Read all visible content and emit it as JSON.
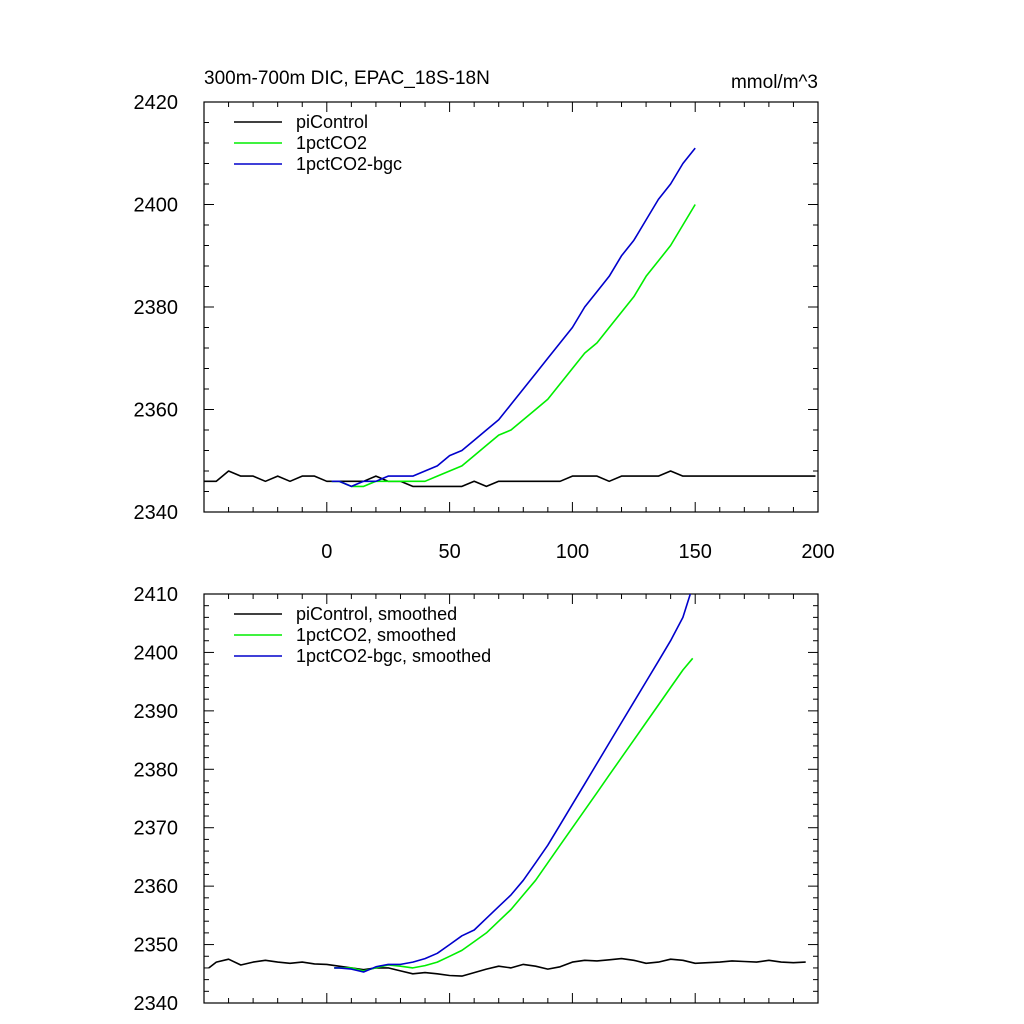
{
  "chart_data": [
    {
      "type": "line",
      "title": "300m-700m DIC, EPAC_18S-18N",
      "units": "mmol/m^3",
      "xlim": [
        -50,
        200
      ],
      "ylim": [
        2340,
        2420
      ],
      "xticks": [
        0,
        50,
        100,
        150,
        200
      ],
      "yticks": [
        2340,
        2360,
        2380,
        2400,
        2420
      ],
      "xtick_labels": [
        "0",
        "50",
        "100",
        "150",
        "200"
      ],
      "ytick_labels": [
        "2340",
        "2360",
        "2380",
        "2400",
        "2420"
      ],
      "legend_position": "top-left",
      "series": [
        {
          "name": "piControl",
          "color": "#000000",
          "x": [
            -50,
            -45,
            -40,
            -35,
            -30,
            -25,
            -20,
            -15,
            -10,
            -5,
            0,
            5,
            10,
            15,
            20,
            25,
            30,
            35,
            40,
            45,
            50,
            55,
            60,
            65,
            70,
            75,
            80,
            85,
            90,
            95,
            100,
            105,
            110,
            115,
            120,
            125,
            130,
            135,
            140,
            145,
            150,
            155,
            160,
            165,
            170,
            175,
            180,
            185,
            190,
            195,
            199
          ],
          "y": [
            2346,
            2346,
            2348,
            2347,
            2347,
            2346,
            2347,
            2346,
            2347,
            2347,
            2346,
            2346,
            2346,
            2346,
            2347,
            2346,
            2346,
            2345,
            2345,
            2345,
            2345,
            2345,
            2346,
            2345,
            2346,
            2346,
            2346,
            2346,
            2346,
            2346,
            2347,
            2347,
            2347,
            2346,
            2347,
            2347,
            2347,
            2347,
            2348,
            2347,
            2347,
            2347,
            2347,
            2347,
            2347,
            2347,
            2347,
            2347,
            2347,
            2347,
            2347
          ]
        },
        {
          "name": "1pctCO2",
          "color": "#00ee00",
          "x": [
            2,
            5,
            10,
            15,
            20,
            25,
            30,
            35,
            40,
            45,
            50,
            55,
            60,
            65,
            70,
            75,
            80,
            85,
            90,
            95,
            100,
            105,
            110,
            115,
            120,
            125,
            130,
            135,
            140,
            145,
            150
          ],
          "y": [
            2346,
            2346,
            2345,
            2345,
            2346,
            2346,
            2346,
            2346,
            2346,
            2347,
            2348,
            2349,
            2351,
            2353,
            2355,
            2356,
            2358,
            2360,
            2362,
            2365,
            2368,
            2371,
            2373,
            2376,
            2379,
            2382,
            2386,
            2389,
            2392,
            2396,
            2400
          ]
        },
        {
          "name": "1pctCO2-bgc",
          "color": "#0000cc",
          "x": [
            2,
            5,
            10,
            15,
            20,
            25,
            30,
            35,
            40,
            45,
            50,
            55,
            60,
            65,
            70,
            75,
            80,
            85,
            90,
            95,
            100,
            105,
            110,
            115,
            120,
            125,
            130,
            135,
            140,
            145,
            150
          ],
          "y": [
            2346,
            2346,
            2345,
            2346,
            2346,
            2347,
            2347,
            2347,
            2348,
            2349,
            2351,
            2352,
            2354,
            2356,
            2358,
            2361,
            2364,
            2367,
            2370,
            2373,
            2376,
            2380,
            2383,
            2386,
            2390,
            2393,
            2397,
            2401,
            2404,
            2408,
            2411
          ]
        }
      ]
    },
    {
      "type": "line",
      "title": "",
      "ylim": [
        2340,
        2410
      ],
      "xlim": [
        -50,
        200
      ],
      "yticks": [
        2340,
        2350,
        2360,
        2370,
        2380,
        2390,
        2400,
        2410
      ],
      "ytick_labels": [
        "2340",
        "2350",
        "2360",
        "2370",
        "2380",
        "2390",
        "2400",
        "2410"
      ],
      "legend_position": "top-left",
      "series": [
        {
          "name": "piControl, smoothed",
          "color": "#000000",
          "x": [
            -48,
            -45,
            -40,
            -35,
            -30,
            -25,
            -20,
            -15,
            -10,
            -5,
            0,
            5,
            10,
            15,
            20,
            25,
            30,
            35,
            40,
            45,
            50,
            55,
            60,
            65,
            70,
            75,
            80,
            85,
            90,
            95,
            100,
            105,
            110,
            115,
            120,
            125,
            130,
            135,
            140,
            145,
            150,
            155,
            160,
            165,
            170,
            175,
            180,
            185,
            190,
            195
          ],
          "y": [
            2346,
            2347,
            2347.5,
            2346.5,
            2347,
            2347.3,
            2347,
            2346.8,
            2347,
            2346.7,
            2346.6,
            2346.3,
            2346,
            2345.7,
            2346,
            2346,
            2345.5,
            2345,
            2345.2,
            2345,
            2344.7,
            2344.6,
            2345.2,
            2345.8,
            2346.3,
            2346,
            2346.6,
            2346.3,
            2345.8,
            2346.2,
            2347,
            2347.3,
            2347.2,
            2347.4,
            2347.6,
            2347.3,
            2346.8,
            2347,
            2347.5,
            2347.3,
            2346.8,
            2346.9,
            2347,
            2347.2,
            2347.1,
            2347,
            2347.3,
            2347,
            2346.9,
            2347
          ]
        },
        {
          "name": "1pctCO2, smoothed",
          "color": "#00ee00",
          "x": [
            3,
            5,
            10,
            15,
            20,
            25,
            30,
            35,
            40,
            45,
            50,
            55,
            60,
            65,
            70,
            75,
            80,
            85,
            90,
            95,
            100,
            105,
            110,
            115,
            120,
            125,
            130,
            135,
            140,
            145,
            149
          ],
          "y": [
            2346,
            2346,
            2346,
            2345.5,
            2346,
            2346.5,
            2346.3,
            2346,
            2346.4,
            2347,
            2348,
            2349,
            2350.5,
            2352,
            2354,
            2356,
            2358.5,
            2361,
            2364,
            2367,
            2370,
            2373,
            2376,
            2379,
            2382,
            2385,
            2388,
            2391,
            2394,
            2397,
            2399
          ]
        },
        {
          "name": "1pctCO2-bgc, smoothed",
          "color": "#0000cc",
          "x": [
            3,
            5,
            10,
            15,
            20,
            25,
            30,
            35,
            40,
            45,
            50,
            55,
            60,
            65,
            70,
            75,
            80,
            85,
            90,
            95,
            100,
            105,
            110,
            115,
            120,
            125,
            130,
            135,
            140,
            145,
            148
          ],
          "y": [
            2346,
            2346,
            2345.8,
            2345.3,
            2346.2,
            2346.6,
            2346.6,
            2347,
            2347.6,
            2348.5,
            2350,
            2351.5,
            2352.5,
            2354.5,
            2356.5,
            2358.5,
            2361,
            2364,
            2367,
            2370.5,
            2374,
            2377.5,
            2381,
            2384.5,
            2388,
            2391.5,
            2395,
            2398.5,
            2402,
            2406,
            2410
          ]
        }
      ]
    }
  ]
}
